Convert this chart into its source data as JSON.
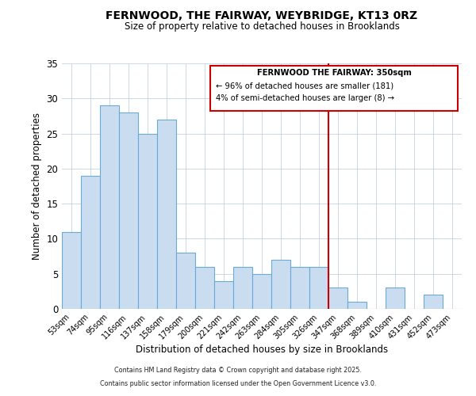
{
  "title": "FERNWOOD, THE FAIRWAY, WEYBRIDGE, KT13 0RZ",
  "subtitle": "Size of property relative to detached houses in Brooklands",
  "xlabel": "Distribution of detached houses by size in Brooklands",
  "ylabel": "Number of detached properties",
  "bar_color": "#c9dcf0",
  "bar_edge_color": "#6aaad4",
  "categories": [
    "53sqm",
    "74sqm",
    "95sqm",
    "116sqm",
    "137sqm",
    "158sqm",
    "179sqm",
    "200sqm",
    "221sqm",
    "242sqm",
    "263sqm",
    "284sqm",
    "305sqm",
    "326sqm",
    "347sqm",
    "368sqm",
    "389sqm",
    "410sqm",
    "431sqm",
    "452sqm",
    "473sqm"
  ],
  "values": [
    11,
    19,
    29,
    28,
    25,
    27,
    8,
    6,
    4,
    6,
    5,
    7,
    6,
    6,
    3,
    1,
    0,
    3,
    0,
    2,
    0
  ],
  "ylim": [
    0,
    35
  ],
  "yticks": [
    0,
    5,
    10,
    15,
    20,
    25,
    30,
    35
  ],
  "vline_index": 14,
  "vline_color": "#cc0000",
  "annotation_title": "FERNWOOD THE FAIRWAY: 350sqm",
  "annotation_line2": "← 96% of detached houses are smaller (181)",
  "annotation_line3": "4% of semi-detached houses are larger (8) →",
  "annotation_box_color": "#cc0000",
  "footer_line1": "Contains HM Land Registry data © Crown copyright and database right 2025.",
  "footer_line2": "Contains public sector information licensed under the Open Government Licence v3.0.",
  "background_color": "#ffffff",
  "grid_color": "#ccd8e8"
}
